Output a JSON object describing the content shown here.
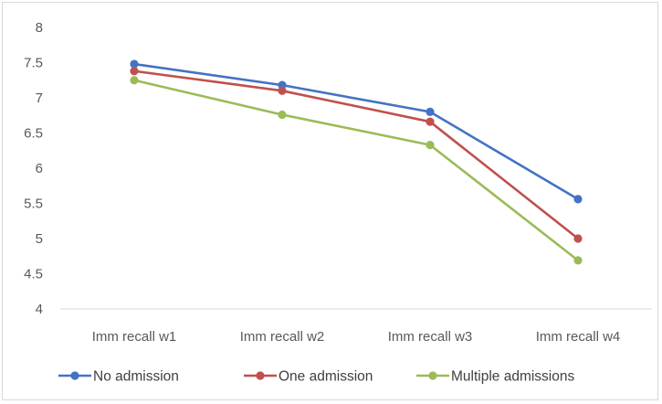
{
  "chart_data": {
    "type": "line",
    "categories": [
      "Imm recall w1",
      "Imm recall w2",
      "Imm recall w3",
      "Imm recall w4"
    ],
    "series": [
      {
        "name": "No admission",
        "color": "#4472c4",
        "values": [
          7.48,
          7.18,
          6.8,
          5.56
        ]
      },
      {
        "name": "One admission",
        "color": "#c0504d",
        "values": [
          7.38,
          7.1,
          6.66,
          5.0
        ]
      },
      {
        "name": "Multiple admissions",
        "color": "#9bbb59",
        "values": [
          7.25,
          6.76,
          6.33,
          4.69
        ]
      }
    ],
    "yticks": [
      "4",
      "4.5",
      "5",
      "5.5",
      "6",
      "6.5",
      "7",
      "7.5",
      "8"
    ],
    "ylim": [
      4,
      8
    ],
    "grid": false,
    "legend_position": "bottom",
    "title": "",
    "xlabel": "",
    "ylabel": ""
  }
}
